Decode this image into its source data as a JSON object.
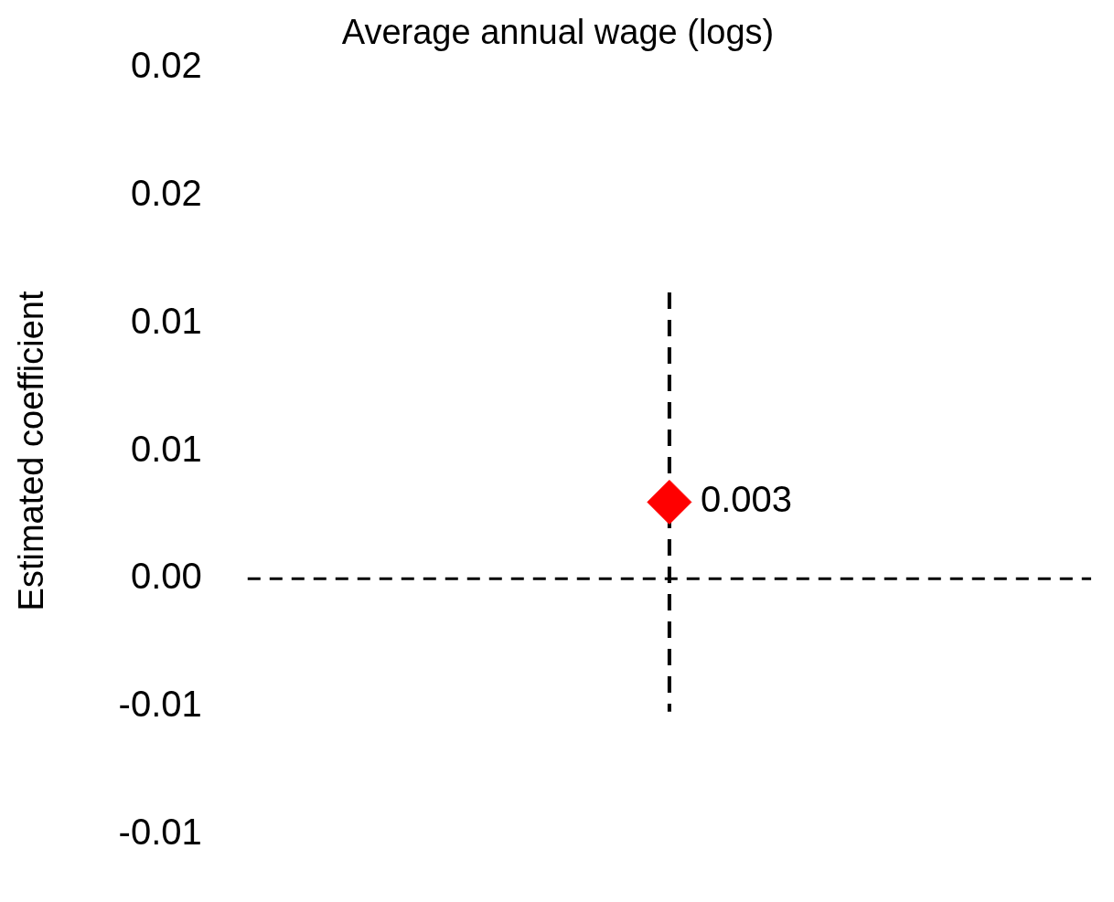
{
  "chart_data": {
    "type": "scatter",
    "title": "Average annual wage (logs)",
    "ylabel": "Estimated coefficient",
    "categories": [
      null
    ],
    "series": [
      {
        "color": "#ff0000",
        "values": [
          0.003
        ],
        "errors": [
          [
            -0.0052,
            0.0112
          ]
        ]
      }
    ],
    "marker": "diamond",
    "data_labels": true,
    "ylim": [
      -0.01,
      0.02
    ],
    "yticks": [
      {
        "value": -0.01,
        "label": "-0.01"
      },
      {
        "value": -0.005,
        "label": "-0.01"
      },
      {
        "value": 0,
        "label": "0.00"
      },
      {
        "value": 0.005,
        "label": "0.01"
      },
      {
        "value": 0.01,
        "label": "0.01"
      },
      {
        "value": 0.015,
        "label": "0.02"
      },
      {
        "value": 0.02,
        "label": "0.02"
      }
    ],
    "ref_lines": [
      {
        "axis": "y",
        "value": 0,
        "color": "#000000",
        "line_style": "dashed"
      }
    ],
    "tick_labels": "y",
    "grid": false,
    "legend": false
  }
}
